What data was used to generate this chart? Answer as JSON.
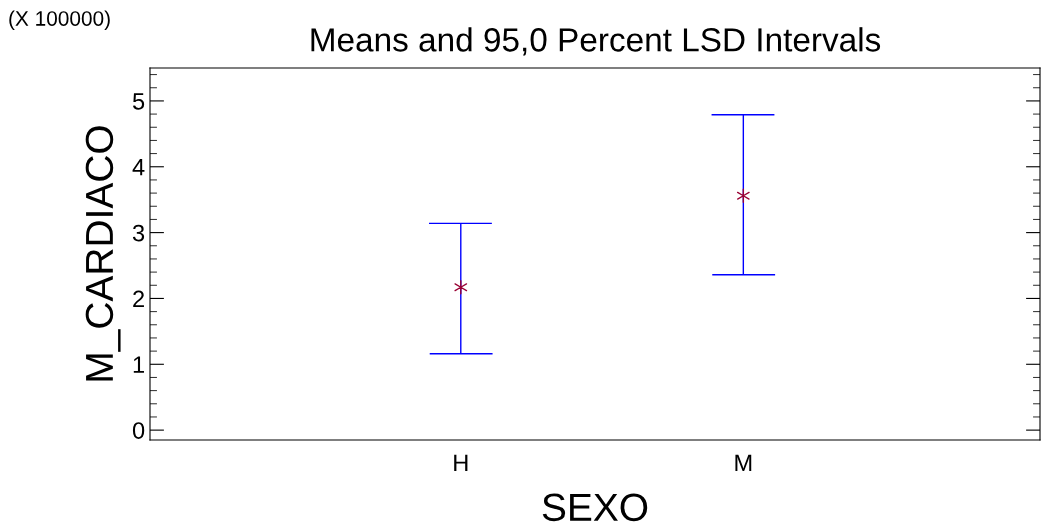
{
  "chart_data": {
    "type": "scatter",
    "title": "Means and 95,0 Percent LSD Intervals",
    "xlabel": "SEXO",
    "ylabel": "M_CARDIACO",
    "annotations": [
      "(X 100000)"
    ],
    "categories": [
      "H",
      "M"
    ],
    "series": [
      {
        "color": "#990033",
        "values": [
          2.17,
          3.56
        ],
        "errors": [
          [
            1.16,
            3.14
          ],
          [
            2.36,
            4.79
          ]
        ]
      }
    ],
    "ylim": [
      -0.15,
      5.5
    ],
    "yticks": [
      0,
      1,
      2,
      3,
      4,
      5
    ],
    "marker": "cross",
    "grid": false
  }
}
